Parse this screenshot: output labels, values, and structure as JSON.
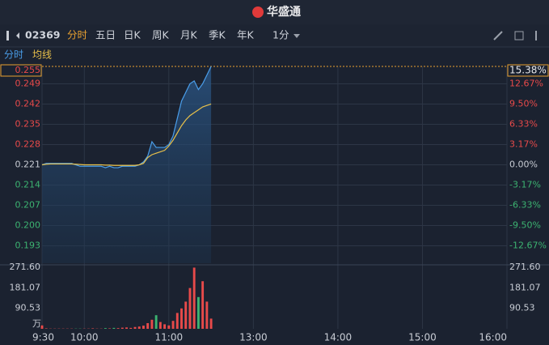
{
  "header": {
    "title": "华盛通"
  },
  "toolbar": {
    "code": "02369",
    "periods": [
      "分时",
      "五日",
      "日K",
      "周K",
      "月K",
      "季K",
      "年K"
    ],
    "interval": "1分"
  },
  "chart_data": {
    "type": "line",
    "x": [
      "9:30",
      "9:33",
      "9:36",
      "9:39",
      "9:42",
      "9:45",
      "9:48",
      "9:51",
      "9:54",
      "9:57",
      "10:00",
      "10:03",
      "10:06",
      "10:09",
      "10:12",
      "10:15",
      "10:18",
      "10:21",
      "10:24",
      "10:27",
      "10:30",
      "10:33",
      "10:36",
      "10:39",
      "10:42",
      "10:45",
      "10:48",
      "10:51",
      "10:54",
      "10:57",
      "11:00",
      "11:03",
      "11:06",
      "11:09",
      "11:12",
      "11:15",
      "11:18",
      "11:21",
      "11:24",
      "11:27",
      "11:30"
    ],
    "series": [
      {
        "name": "分时",
        "color": "#4a9eea",
        "values": [
          0.221,
          0.2215,
          0.2215,
          0.2215,
          0.2215,
          0.2215,
          0.2215,
          0.2215,
          0.221,
          0.2205,
          0.2205,
          0.2205,
          0.2205,
          0.2205,
          0.2205,
          0.22,
          0.2205,
          0.22,
          0.22,
          0.2205,
          0.2205,
          0.2205,
          0.2205,
          0.221,
          0.222,
          0.224,
          0.229,
          0.227,
          0.227,
          0.227,
          0.228,
          0.231,
          0.237,
          0.243,
          0.246,
          0.249,
          0.25,
          0.247,
          0.249,
          0.252,
          0.255
        ]
      },
      {
        "name": "均线",
        "color": "#e8c04a",
        "values": [
          0.221,
          0.2212,
          0.2213,
          0.2213,
          0.2213,
          0.2213,
          0.2213,
          0.2213,
          0.2212,
          0.2211,
          0.221,
          0.221,
          0.221,
          0.221,
          0.221,
          0.2209,
          0.2209,
          0.2208,
          0.2208,
          0.2208,
          0.2208,
          0.2208,
          0.2208,
          0.221,
          0.2215,
          0.2235,
          0.2245,
          0.225,
          0.2255,
          0.226,
          0.2275,
          0.2295,
          0.232,
          0.2345,
          0.2365,
          0.238,
          0.239,
          0.24,
          0.241,
          0.2415,
          0.242
        ]
      }
    ],
    "xlim": [
      "9:30",
      "16:00"
    ],
    "xticks": [
      "9:30",
      "10:00",
      "11:00",
      "13:00",
      "14:00",
      "15:00",
      "16:00"
    ],
    "ylim": [
      0.187,
      0.255
    ],
    "yticks": [
      0.255,
      0.249,
      0.242,
      0.235,
      0.228,
      0.221,
      0.214,
      0.207,
      {
        "value": 0.2,
        "label": "0.200"
      },
      0.193
    ],
    "y2lim": [
      -15.38,
      15.38
    ],
    "y2ticks": [
      {
        "value": 15.38,
        "label": "15.38%"
      },
      {
        "value": 12.67,
        "label": "12.67%"
      },
      {
        "value": 9.5,
        "label": "9.50%"
      },
      {
        "value": 6.33,
        "label": "6.33%"
      },
      {
        "value": 3.17,
        "label": "3.17%"
      },
      {
        "value": 0,
        "label": "0.00%"
      },
      {
        "value": -3.17,
        "label": "-3.17%"
      },
      {
        "value": -6.33,
        "label": "-6.33%"
      },
      {
        "value": -9.5,
        "label": "-9.50%"
      },
      {
        "value": -12.67,
        "label": "-12.67%"
      }
    ],
    "up_color": "#e84a4a",
    "down_color": "#3cb371",
    "grid": true,
    "volume": {
      "unit": "万",
      "ylim": [
        0,
        271.6
      ],
      "yticks": [
        {
          "value": 271.6,
          "label": "271.60"
        },
        181.07,
        90.53
      ],
      "values": [
        15,
        2,
        1,
        1,
        1,
        1,
        1,
        1,
        1,
        1,
        1,
        1,
        2,
        1,
        1,
        3,
        2,
        4,
        3,
        5,
        6,
        4,
        8,
        10,
        14,
        25,
        40,
        60,
        30,
        20,
        15,
        35,
        70,
        90,
        120,
        180,
        270,
        140,
        210,
        120,
        45
      ]
    }
  }
}
